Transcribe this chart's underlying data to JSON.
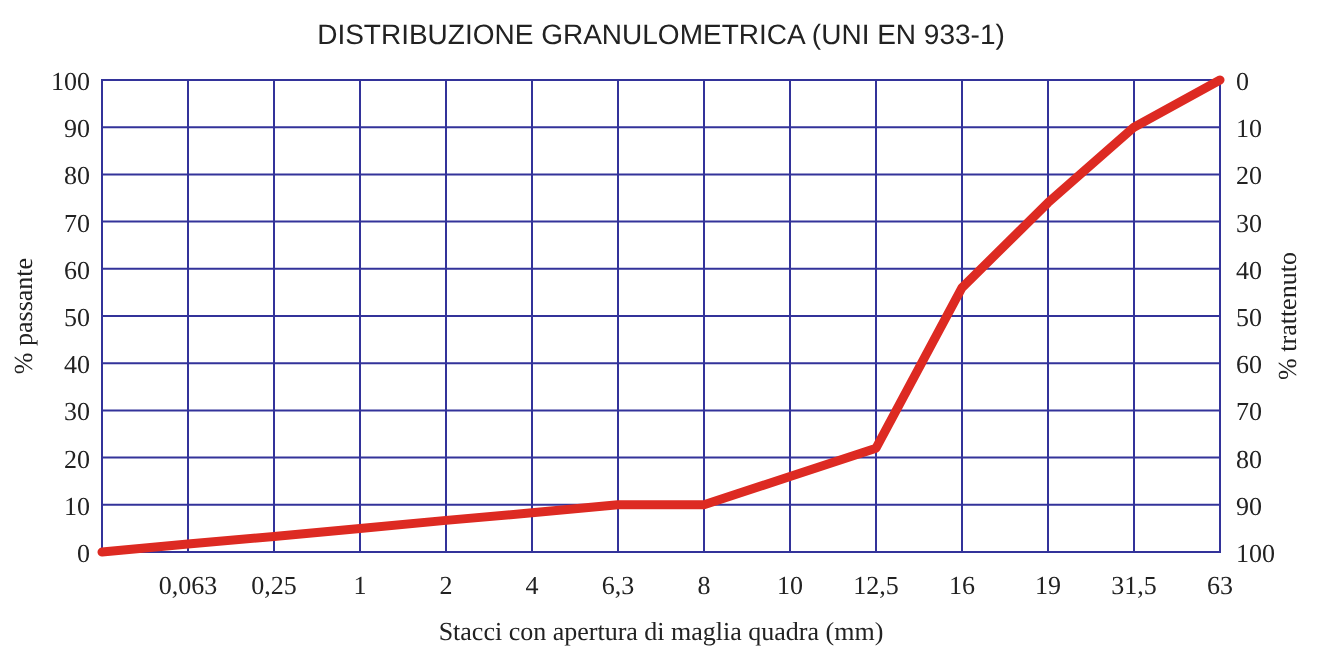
{
  "chart_data": {
    "type": "line",
    "title": "DISTRIBUZIONE GRANULOMETRICA (UNI EN 933-1)",
    "xlabel": "Stacci con apertura di maglia quadra (mm)",
    "ylabel": "% passante",
    "y2label": "% trattenuto",
    "categories": [
      null,
      "0,063",
      "0,25",
      "1",
      "2",
      "4",
      "6,3",
      "8",
      "10",
      "12,5",
      "16",
      "19",
      "31,5",
      "63"
    ],
    "ylim": [
      0,
      100
    ],
    "yticks": [
      0,
      10,
      20,
      30,
      40,
      50,
      60,
      70,
      80,
      90,
      100
    ],
    "y2lim": [
      100,
      0
    ],
    "y2ticks": [
      0,
      10,
      20,
      30,
      40,
      50,
      60,
      70,
      80,
      90,
      100
    ],
    "grid": true,
    "marker": "none",
    "line_style": "solid",
    "series": [
      {
        "color": "#dd2a22",
        "values": [
          0,
          1.7,
          3.3,
          5,
          6.7,
          8.3,
          10,
          10,
          16,
          22,
          56,
          74,
          90,
          100
        ]
      }
    ]
  }
}
